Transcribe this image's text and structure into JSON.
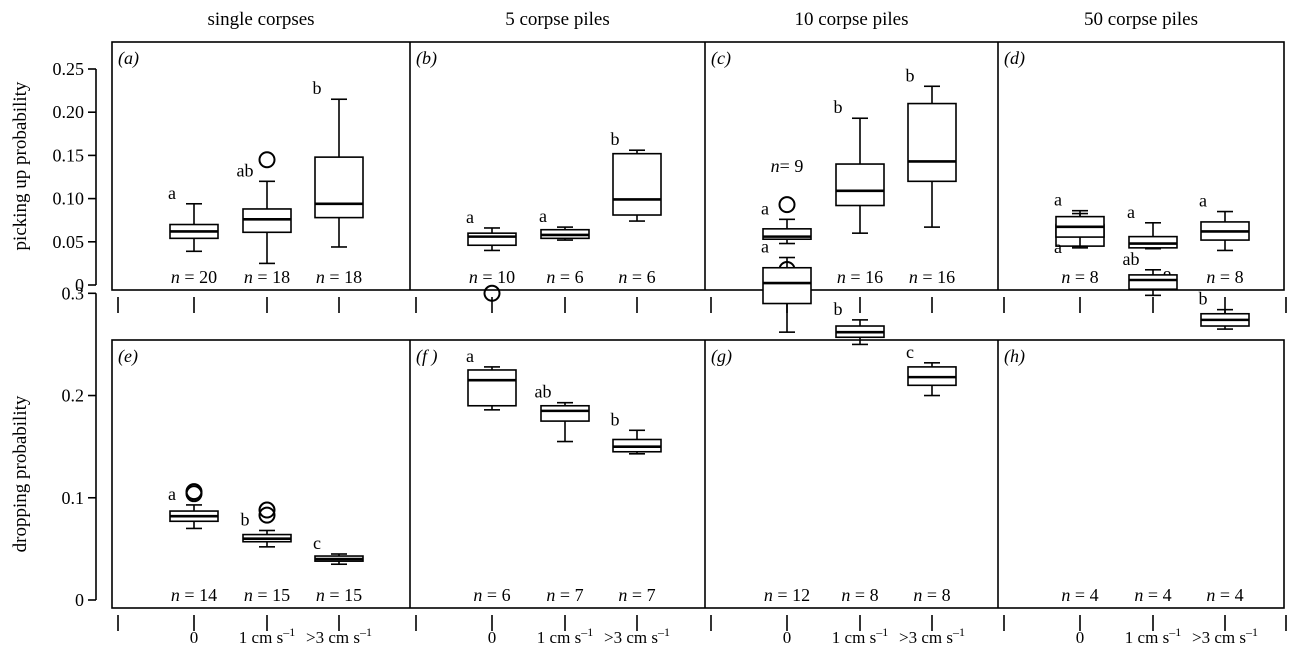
{
  "chart_data": [
    {
      "type": "box",
      "ylabel": "picking up probability",
      "ylim": [
        0,
        0.25
      ],
      "yticks": [
        "0",
        "0.05",
        "0.10",
        "0.15",
        "0.20",
        "0.25"
      ],
      "panels": [
        {
          "title": "single corpses",
          "letter": "(a)",
          "boxes": [
            {
              "min": 0.039,
              "q1": 0.054,
              "median": 0.062,
              "q3": 0.07,
              "max": 0.094,
              "outliers": [],
              "letter": "a",
              "n_value": "20"
            },
            {
              "min": 0.025,
              "q1": 0.061,
              "median": 0.076,
              "q3": 0.088,
              "max": 0.12,
              "outliers": [
                0.145
              ],
              "letter": "ab",
              "n_value": "18"
            },
            {
              "min": 0.044,
              "q1": 0.078,
              "median": 0.094,
              "q3": 0.148,
              "max": 0.215,
              "outliers": [],
              "letter": "b",
              "n_value": "18"
            }
          ]
        },
        {
          "title": "5 corpse piles",
          "letter": "(b)",
          "boxes": [
            {
              "min": 0.04,
              "q1": 0.046,
              "median": 0.056,
              "q3": 0.06,
              "max": 0.066,
              "outliers": [],
              "letter": "a",
              "n_value": "10"
            },
            {
              "min": 0.052,
              "q1": 0.054,
              "median": 0.058,
              "q3": 0.064,
              "max": 0.067,
              "outliers": [],
              "letter": "a",
              "n_value": "6"
            },
            {
              "min": 0.074,
              "q1": 0.081,
              "median": 0.099,
              "q3": 0.152,
              "max": 0.156,
              "outliers": [],
              "letter": "b",
              "n_value": "6"
            }
          ]
        },
        {
          "title": "10 corpse piles",
          "letter": "(c)",
          "extra_label": {
            "text_n": "n",
            "text_value": "= 9"
          },
          "boxes": [
            {
              "min": 0.048,
              "q1": 0.053,
              "median": 0.056,
              "q3": 0.065,
              "max": 0.076,
              "outliers": [
                0.093,
                0.018
              ],
              "letter": "a",
              "n_value": ""
            },
            {
              "min": 0.06,
              "q1": 0.092,
              "median": 0.109,
              "q3": 0.14,
              "max": 0.193,
              "outliers": [],
              "letter": "b",
              "n_value": "16"
            },
            {
              "min": 0.067,
              "q1": 0.12,
              "median": 0.143,
              "q3": 0.21,
              "max": 0.23,
              "outliers": [],
              "letter": "b",
              "n_value": "16"
            }
          ]
        },
        {
          "title": "50 corpse piles",
          "letter": "(d)",
          "boxes": [
            {
              "min": 0.043,
              "q1": 0.045,
              "median": 0.057,
              "q3": 0.07,
              "max": 0.086,
              "outliers": [],
              "letter": "a",
              "n_value": "8"
            },
            {
              "min": 0.042,
              "q1": 0.043,
              "median": 0.048,
              "q3": 0.056,
              "max": 0.072,
              "outliers": [],
              "letter": "a",
              "n_value": "8"
            },
            {
              "min": 0.04,
              "q1": 0.052,
              "median": 0.062,
              "q3": 0.073,
              "max": 0.085,
              "outliers": [],
              "letter": "a",
              "n_value": "8"
            }
          ]
        }
      ]
    },
    {
      "type": "box",
      "ylabel": "dropping probability",
      "ylim": [
        0,
        0.38
      ],
      "yticks": [
        "0",
        "0.1",
        "0.2",
        "0.3"
      ],
      "xticks": [
        {
          "base": "0",
          "sup": ""
        },
        {
          "base": "1 cm s",
          "sup": "–1"
        },
        {
          "base": ">3 cm s",
          "sup": "–1"
        }
      ],
      "panels": [
        {
          "letter": "(e)",
          "boxes": [
            {
              "min": 0.07,
              "q1": 0.077,
              "median": 0.082,
              "q3": 0.087,
              "max": 0.093,
              "outliers": [
                0.104,
                0.106
              ],
              "letter": "a",
              "n_value": "14"
            },
            {
              "min": 0.052,
              "q1": 0.057,
              "median": 0.06,
              "q3": 0.064,
              "max": 0.068,
              "outliers": [
                0.083,
                0.088
              ],
              "letter": "b",
              "n_value": "15"
            },
            {
              "min": 0.035,
              "q1": 0.038,
              "median": 0.04,
              "q3": 0.043,
              "max": 0.045,
              "outliers": [],
              "letter": "c",
              "n_value": "15"
            }
          ]
        },
        {
          "letter": "(f )",
          "boxes": [
            {
              "min": 0.186,
              "q1": 0.19,
              "median": 0.215,
              "q3": 0.225,
              "max": 0.228,
              "outliers": [
                0.3
              ],
              "letter": "a",
              "n_value": "6"
            },
            {
              "min": 0.155,
              "q1": 0.175,
              "median": 0.185,
              "q3": 0.19,
              "max": 0.193,
              "outliers": [],
              "letter": "ab",
              "n_value": "7"
            },
            {
              "min": 0.143,
              "q1": 0.145,
              "median": 0.15,
              "q3": 0.157,
              "max": 0.166,
              "outliers": [],
              "letter": "b",
              "n_value": "7"
            }
          ]
        },
        {
          "letter": "(g)",
          "boxes": [
            {
              "min": 0.262,
              "q1": 0.29,
              "median": 0.31,
              "q3": 0.325,
              "max": 0.335,
              "outliers": [],
              "letter": "a",
              "n_value": "12"
            },
            {
              "min": 0.25,
              "q1": 0.257,
              "median": 0.262,
              "q3": 0.268,
              "max": 0.274,
              "outliers": [],
              "letter": "b",
              "n_value": "8"
            },
            {
              "min": 0.2,
              "q1": 0.21,
              "median": 0.218,
              "q3": 0.228,
              "max": 0.232,
              "outliers": [],
              "letter": "c",
              "n_value": "8"
            }
          ]
        },
        {
          "letter": "(h)",
          "boxes": [
            {
              "min": 0.346,
              "q1": 0.355,
              "median": 0.365,
              "q3": 0.375,
              "max": 0.378,
              "outliers": [],
              "letter": "a",
              "letter_below": true,
              "n_value": "4"
            },
            {
              "min": 0.298,
              "q1": 0.304,
              "median": 0.313,
              "q3": 0.318,
              "max": 0.323,
              "outliers": [],
              "letter": "ab",
              "n_value": "4"
            },
            {
              "min": 0.265,
              "q1": 0.268,
              "median": 0.274,
              "q3": 0.28,
              "max": 0.284,
              "outliers": [],
              "letter": "b",
              "n_value": "4"
            }
          ]
        }
      ]
    }
  ]
}
